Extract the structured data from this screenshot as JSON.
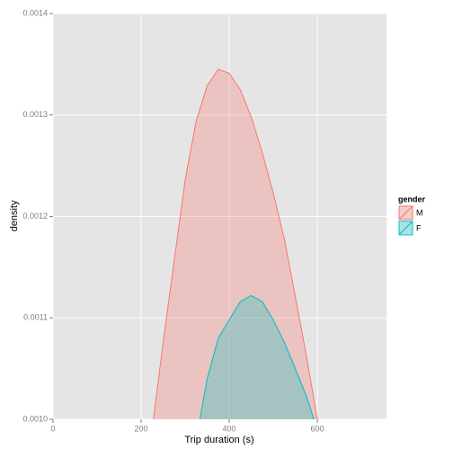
{
  "chart_data": {
    "type": "area",
    "x_label": "Trip duration (s)",
    "y_label": "density",
    "x": [
      225,
      250,
      275,
      300,
      325,
      350,
      375,
      400,
      425,
      450,
      475,
      500,
      525,
      550,
      575,
      600
    ],
    "series": [
      {
        "name": "M",
        "color": "#F8766D",
        "values": [
          0.00099,
          0.001076,
          0.001156,
          0.001236,
          0.001294,
          0.001329,
          0.001345,
          0.001341,
          0.001325,
          0.001298,
          0.001263,
          0.001223,
          0.001178,
          0.001121,
          0.001063,
          0.001
        ]
      },
      {
        "name": "F",
        "color": "#00BFC4",
        "values": [
          null,
          null,
          null,
          null,
          0.00098,
          0.00104,
          0.00108,
          0.001098,
          0.001116,
          0.001122,
          0.001116,
          0.001098,
          0.001076,
          0.00105,
          0.001023,
          0.00099
        ]
      }
    ],
    "legend_title": "gender",
    "xlim": [
      0,
      757
    ],
    "xticks": [
      0,
      200,
      400,
      600
    ],
    "ylim": [
      0.001,
      0.0014
    ],
    "yticks": [
      {
        "value": 0.001,
        "label": "0.0010"
      },
      {
        "value": 0.0011,
        "label": "0.0011"
      },
      {
        "value": 0.0012,
        "label": "0.0012"
      },
      {
        "value": 0.0013,
        "label": "0.0013"
      },
      {
        "value": 0.0014,
        "label": "0.0014"
      }
    ],
    "grid": true,
    "legend": "right"
  }
}
